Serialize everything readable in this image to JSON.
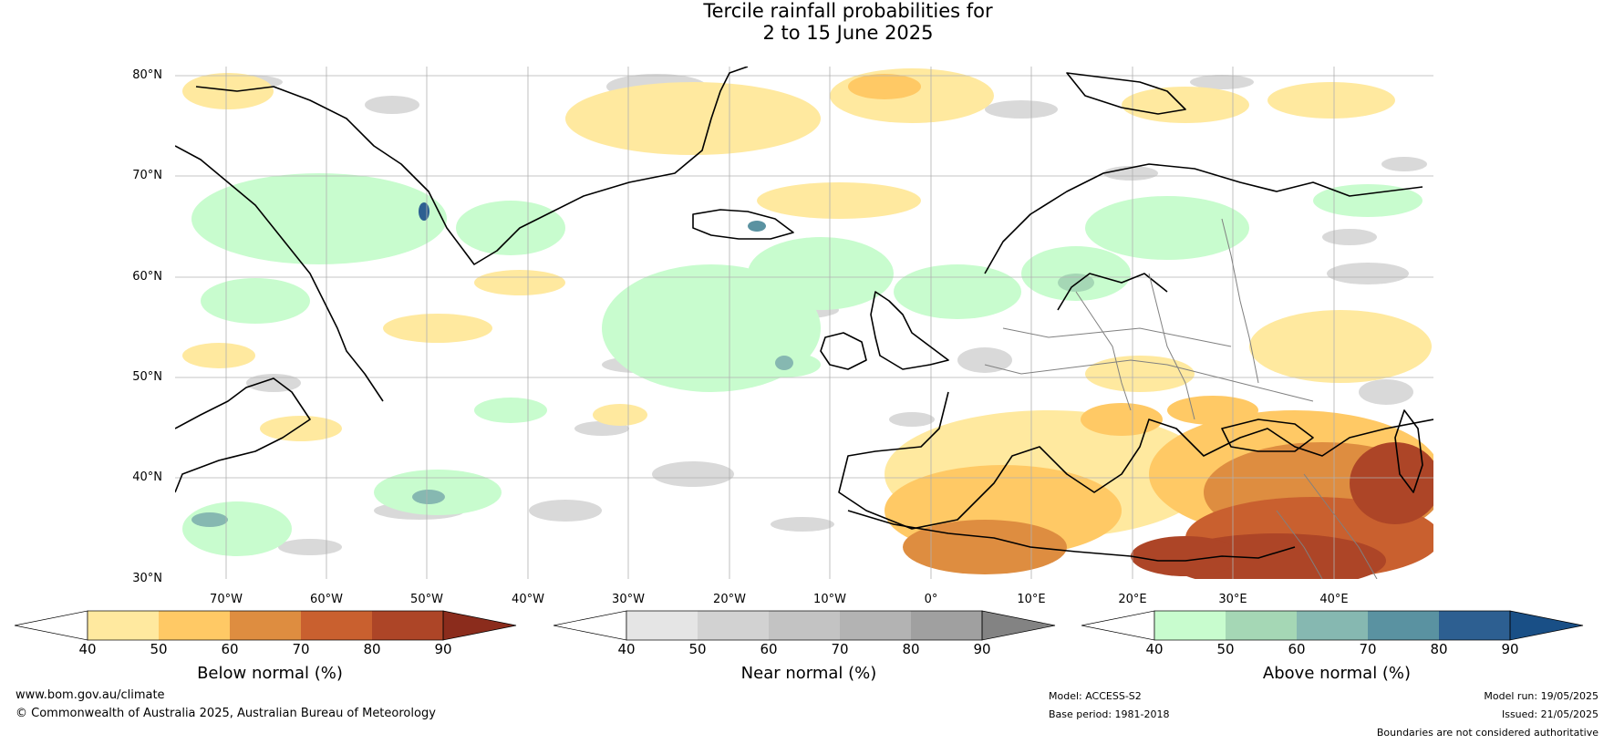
{
  "title": {
    "line1": "Tercile rainfall probabilities for",
    "line2": "2 to 15 June 2025"
  },
  "map": {
    "lat_labels": [
      "80°N",
      "70°N",
      "60°N",
      "50°N",
      "40°N",
      "30°N"
    ],
    "lon_labels": [
      "70°W",
      "60°W",
      "50°W",
      "40°W",
      "30°W",
      "20°W",
      "10°W",
      "0°",
      "10°E",
      "20°E",
      "30°E",
      "40°E"
    ],
    "colors": {
      "land_border": "#000000",
      "country_border": "#808080",
      "grid": "#b0b0b0"
    }
  },
  "colorbars": [
    {
      "label": "Below normal (%)",
      "ticks": [
        "40",
        "50",
        "60",
        "70",
        "80",
        "90"
      ],
      "colors": [
        "#ffffff",
        "#ffe99f",
        "#ffc965",
        "#de8d40",
        "#c9602f",
        "#ad4527",
        "#8b2c1c"
      ]
    },
    {
      "label": "Near normal (%)",
      "ticks": [
        "40",
        "50",
        "60",
        "70",
        "80",
        "90"
      ],
      "colors": [
        "#ffffff",
        "#e5e5e5",
        "#d2d2d2",
        "#c3c3c3",
        "#b3b3b3",
        "#a0a0a0",
        "#838383"
      ]
    },
    {
      "label": "Above normal (%)",
      "ticks": [
        "40",
        "50",
        "60",
        "70",
        "80",
        "90"
      ],
      "colors": [
        "#ffffff",
        "#c8fcce",
        "#a5d7b5",
        "#86b8b1",
        "#5a92a1",
        "#2d5f91",
        "#194f86"
      ]
    }
  ],
  "footer": {
    "website": "www.bom.gov.au/climate",
    "copyright": "© Commonwealth of Australia 2025, Australian Bureau of Meteorology",
    "model": "Model: ACCESS-S2",
    "base_period": "Base period: 1981-2018",
    "model_run": "Model run: 19/05/2025",
    "issued": "Issued: 21/05/2025",
    "disclaimer": "Boundaries are not considered authoritative"
  }
}
